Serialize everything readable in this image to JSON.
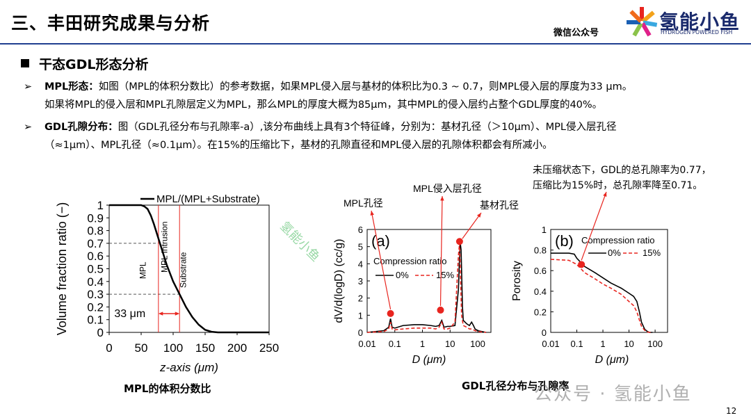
{
  "header": {
    "title": "三、丰田研究成果与分析",
    "wechat": "微信公众号",
    "logo_text": "氢能小鱼",
    "logo_sub": "HYDROGEN POWERED FISH"
  },
  "section_title": "干态GDL形态分析",
  "paragraphs": {
    "p1_label": "MPL形态：",
    "p1_line1": "如图（MPL的体积分数比）的参考数据，如果MPL侵入层与基材的体积比为0.3 ~ 0.7，则MPL侵入层的厚度为33 μm。",
    "p1_line2": "如果将MPL的侵入层和MPL孔隙层定义为MPL，那么MPL的厚度大概为85μm，其中MPL的侵入层约占整个GDL厚度的40%。",
    "p2_label": "GDL孔隙分布：",
    "p2_line1": "图（GDL孔径分布与孔隙率-a）,该分布曲线上具有3个特征峰，分别为：基材孔径（＞10μm）、MPL侵入层孔径",
    "p2_line2": "（≈1μm）、MPL孔径（≈0.1μm）。在15%的压缩比下，基材的孔隙直径和MPL侵入层的孔隙体积都会有所减小。"
  },
  "annotations": {
    "porosity_note_1": "未压缩状态下，GDL的总孔隙率为0.77，",
    "porosity_note_2": "压缩比为15%时，总孔隙率降至0.71。",
    "mpl_pore": "MPL孔径",
    "mpl_intrusion_pore": "MPL侵入层孔径",
    "substrate_pore": "基材孔径"
  },
  "captions": {
    "fig1": "MPL的体积分数比",
    "fig2": "GDL孔径分布与孔隙率"
  },
  "watermark_bottom": "公众号 · 氢能小鱼",
  "watermark_green": "氢能小鱼",
  "page_number": "12",
  "colors": {
    "accent_blue": "#1f3f8f",
    "red": "#e8251f",
    "black": "#000000"
  },
  "chart_data": [
    {
      "type": "line",
      "legend": "MPL/(MPL+Substrate)",
      "xlabel": "z-axis (μm)",
      "ylabel": "Volume fraction ratio (−)",
      "xlim": [
        0,
        250
      ],
      "ylim": [
        0,
        1
      ],
      "xticks": [
        "0",
        "50",
        "100",
        "150",
        "200",
        "250"
      ],
      "yticks": [
        "0",
        "0.1",
        "0.2",
        "0.3",
        "0.4",
        "0.5",
        "0.6",
        "0.7",
        "0.8",
        "0.9",
        "1"
      ],
      "x": [
        0,
        20,
        40,
        50,
        55,
        60,
        65,
        70,
        75,
        80,
        90,
        100,
        110,
        120,
        130,
        140,
        150,
        160,
        170,
        250
      ],
      "y": [
        1,
        1,
        1,
        1,
        0.99,
        0.97,
        0.92,
        0.85,
        0.77,
        0.69,
        0.53,
        0.4,
        0.3,
        0.2,
        0.12,
        0.06,
        0.02,
        0.005,
        0,
        0
      ],
      "region_labels": [
        "MPL",
        "MPL Intrusion",
        "Substrate"
      ],
      "bracket_label": "33 μm",
      "markers_x": [
        77,
        110
      ],
      "guide_y": [
        0.7,
        0.3
      ]
    },
    {
      "type": "line",
      "panel": "(a)",
      "xlabel": "D (μm)",
      "ylabel": "dV/d(logD) (cc/g)",
      "xscale": "log",
      "xlim": [
        0.01,
        300
      ],
      "ylim": [
        0,
        6
      ],
      "xticks": [
        "0.01",
        "0.1",
        "1",
        "10",
        "100"
      ],
      "yticks": [
        "0",
        "1",
        "2",
        "3",
        "4",
        "5",
        "6"
      ],
      "legend_title": "Compression ratio",
      "series": [
        {
          "name": "0%",
          "x": [
            0.01,
            0.04,
            0.06,
            0.07,
            0.08,
            0.1,
            0.2,
            0.5,
            1,
            2,
            3,
            4,
            5,
            6,
            8,
            10,
            15,
            20,
            23,
            25,
            28,
            30,
            40,
            50,
            60,
            70,
            80,
            100,
            200
          ],
          "y": [
            0,
            0.1,
            0.3,
            0.8,
            0.3,
            0.25,
            0.4,
            0.45,
            0.45,
            0.4,
            0.35,
            0.4,
            0.7,
            0.3,
            0.35,
            0.35,
            0.4,
            2.5,
            5.3,
            4.8,
            1.5,
            0.7,
            0.5,
            0.4,
            0.6,
            0.4,
            0.2,
            0.1,
            0
          ]
        },
        {
          "name": "15%",
          "x": [
            0.01,
            0.04,
            0.06,
            0.07,
            0.08,
            0.1,
            0.2,
            0.5,
            1,
            2,
            3,
            4,
            5,
            6,
            8,
            10,
            15,
            20,
            22,
            24,
            26,
            30,
            40,
            50,
            60,
            80,
            100,
            200
          ],
          "y": [
            0,
            0.05,
            0.2,
            0.6,
            0.2,
            0.15,
            0.2,
            0.25,
            0.25,
            0.25,
            0.2,
            0.3,
            0.6,
            0.2,
            0.2,
            0.25,
            0.6,
            4.5,
            5.2,
            3,
            1,
            0.4,
            0.3,
            0.2,
            0.2,
            0.1,
            0.05,
            0
          ]
        }
      ],
      "highlight_points": [
        [
          0.07,
          1.1
        ],
        [
          4.5,
          1.3
        ],
        [
          22,
          5.3
        ]
      ]
    },
    {
      "type": "line",
      "panel": "(b)",
      "xlabel": "D (μm)",
      "ylabel": "Porosity",
      "xscale": "log",
      "xlim": [
        0.01,
        300
      ],
      "ylim": [
        0,
        1
      ],
      "xticks": [
        "0.01",
        "0.1",
        "1",
        "10",
        "100"
      ],
      "yticks": [
        "0",
        "0.2",
        "0.4",
        "0.6",
        "0.8",
        "1"
      ],
      "legend_title": "Compression ratio",
      "series": [
        {
          "name": "0%",
          "x": [
            0.01,
            0.05,
            0.08,
            0.1,
            0.2,
            0.5,
            1,
            2,
            5,
            10,
            15,
            20,
            25,
            30,
            40,
            50,
            60,
            80
          ],
          "y": [
            0.77,
            0.77,
            0.76,
            0.72,
            0.64,
            0.58,
            0.53,
            0.48,
            0.43,
            0.38,
            0.35,
            0.3,
            0.2,
            0.1,
            0.03,
            0.01,
            0,
            0
          ]
        },
        {
          "name": "15%",
          "x": [
            0.01,
            0.05,
            0.1,
            0.2,
            0.5,
            1,
            2,
            5,
            10,
            15,
            20,
            25,
            30,
            40,
            50,
            60,
            80
          ],
          "y": [
            0.71,
            0.7,
            0.66,
            0.58,
            0.52,
            0.47,
            0.43,
            0.37,
            0.3,
            0.26,
            0.2,
            0.12,
            0.06,
            0.02,
            0.005,
            0,
            0
          ]
        }
      ],
      "highlight_points": [
        [
          0.15,
          0.66
        ]
      ]
    }
  ]
}
